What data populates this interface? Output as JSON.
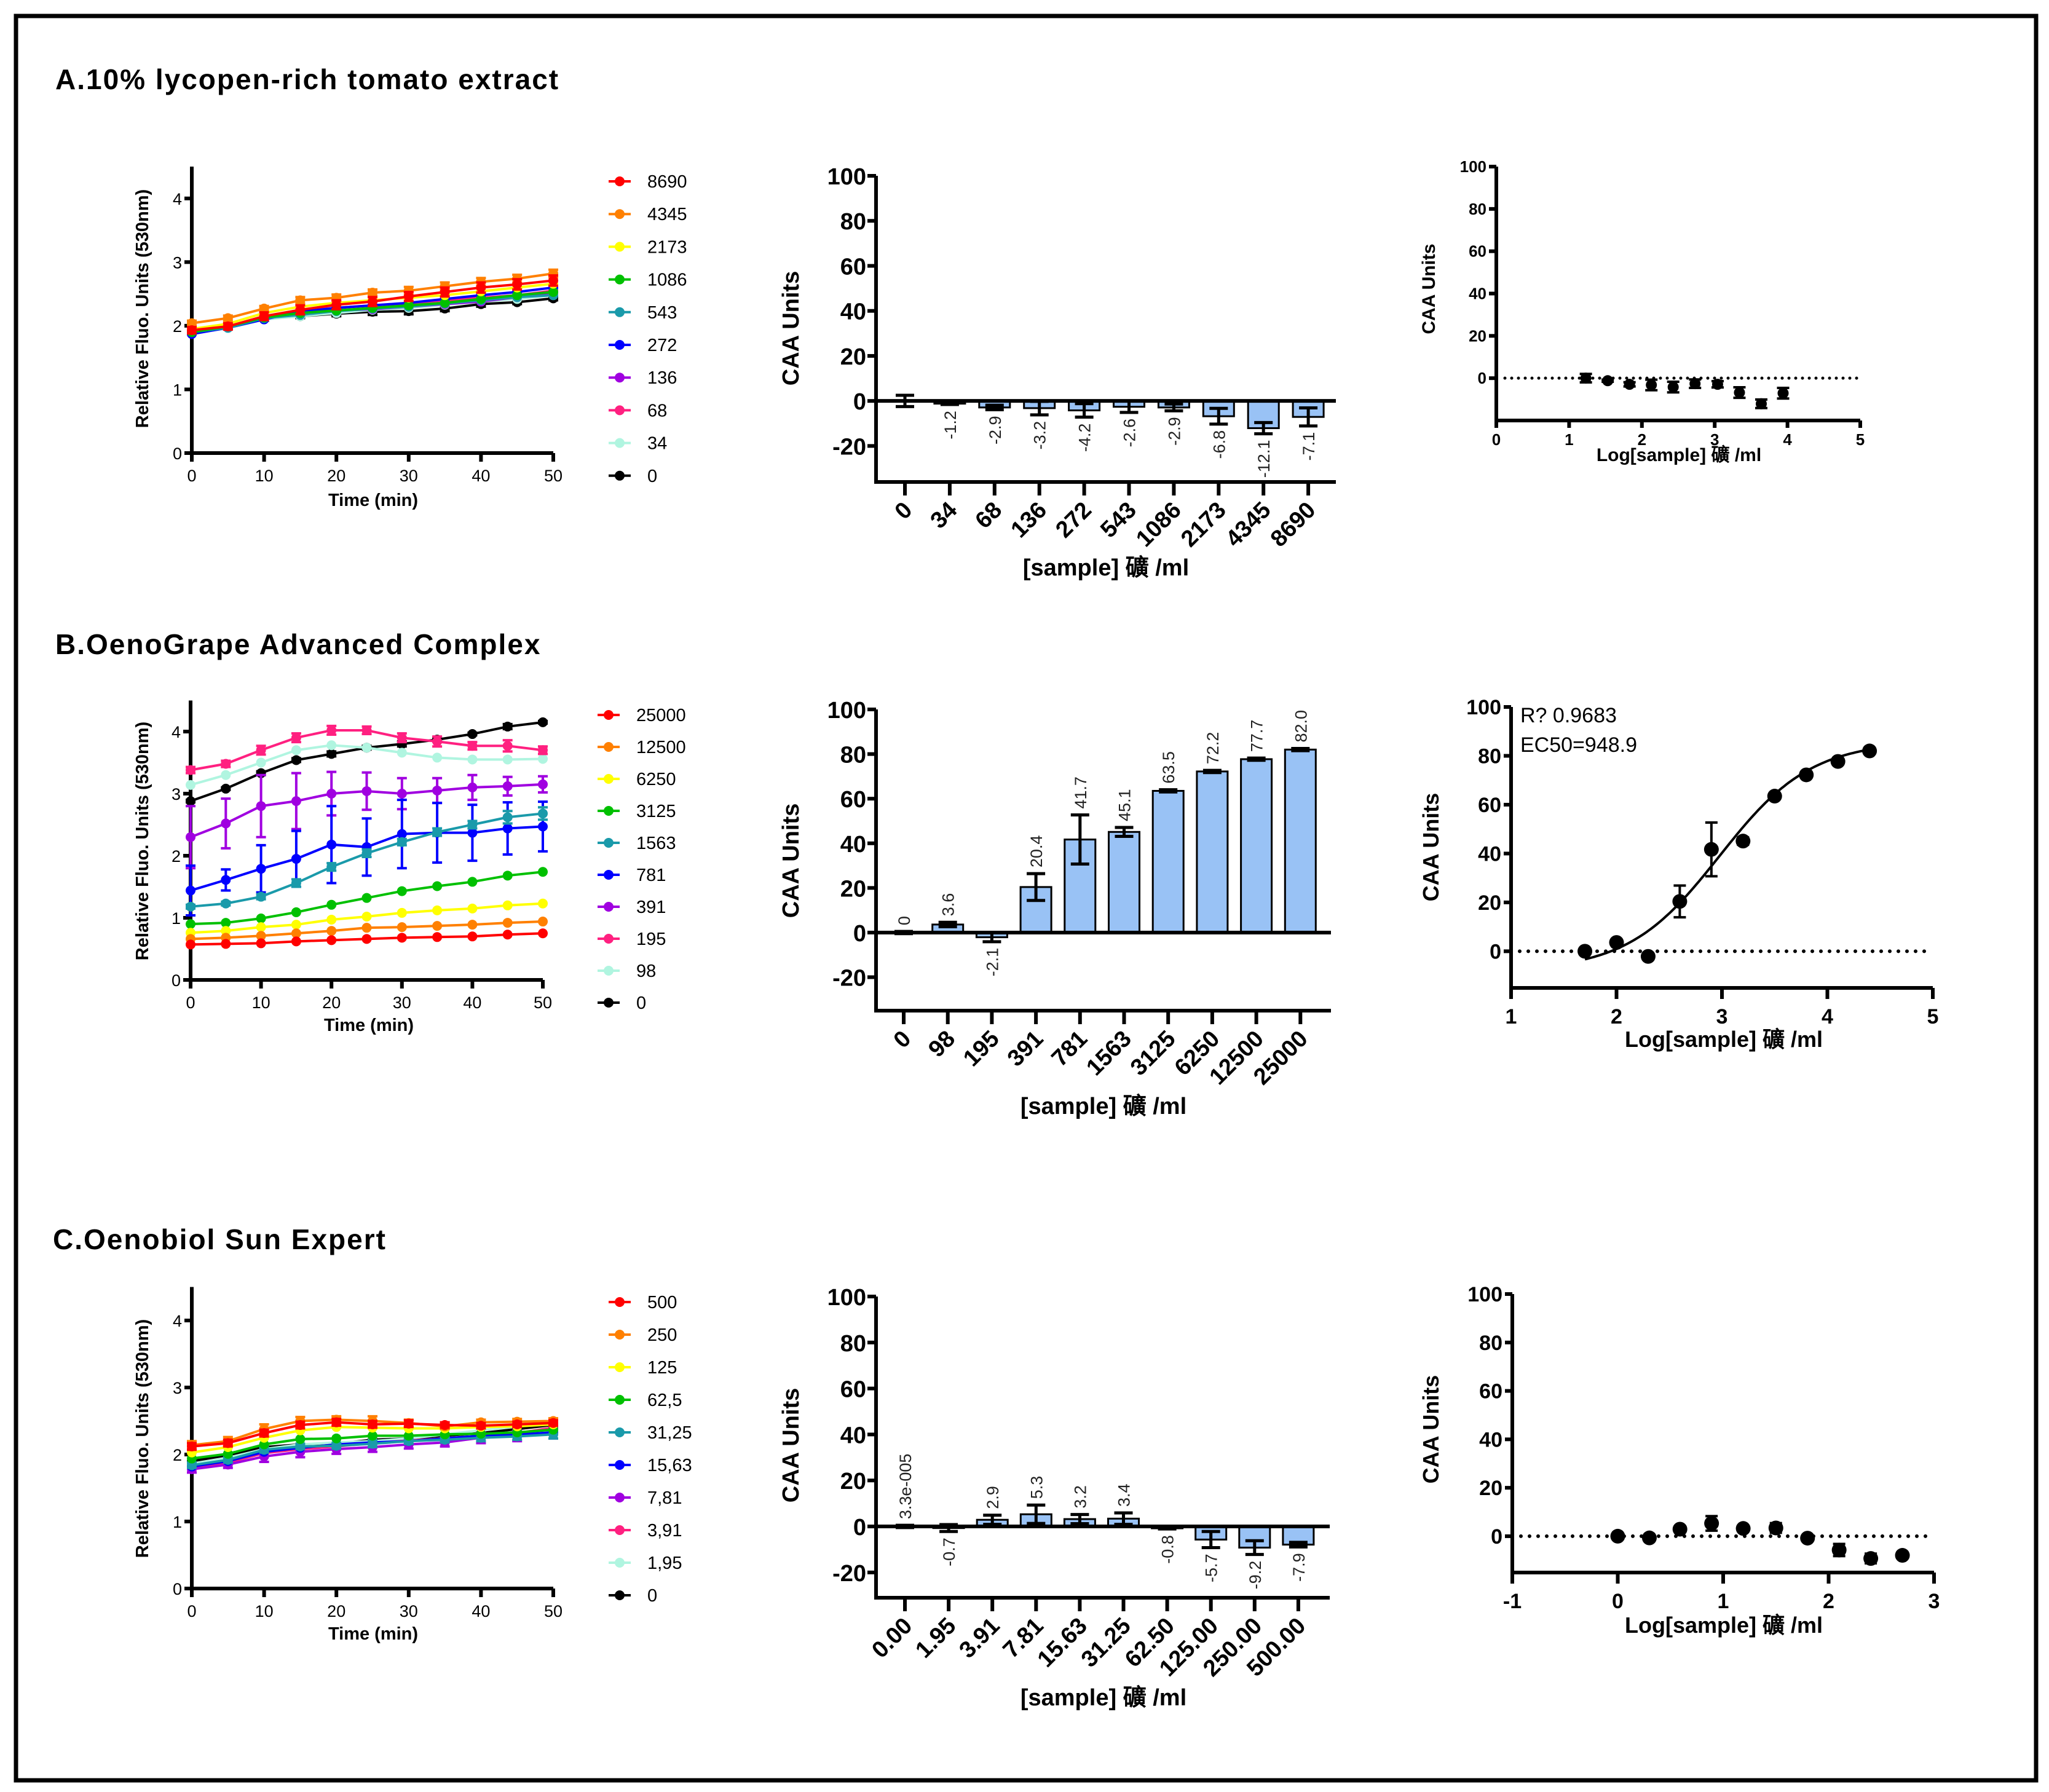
{
  "panel_titles": [
    "A.10% lycopen-rich tomato extract",
    "B.OenoGrape Advanced Complex",
    "C.Oenobiol Sun Expert"
  ],
  "chart_data": [
    {
      "type": "line",
      "panel": "A",
      "xlabel": "Time (min)",
      "ylabel": "Relative Fluo. Units (530nm)",
      "xlim": [
        0,
        50
      ],
      "ylim": [
        0,
        4.5
      ],
      "xticks": [
        0,
        10,
        20,
        30,
        40,
        50
      ],
      "yticks": [
        0,
        1,
        2,
        3,
        4
      ],
      "x": [
        0,
        5,
        10,
        15,
        20,
        25,
        30,
        35,
        40,
        45,
        50
      ],
      "series": [
        {
          "name": "8690",
          "color": "#ff0000",
          "values": [
            1.93,
            1.99,
            2.15,
            2.25,
            2.33,
            2.38,
            2.46,
            2.53,
            2.6,
            2.65,
            2.71
          ],
          "err": [
            0.05,
            0.05,
            0.06,
            0.07,
            0.07,
            0.07,
            0.07,
            0.07,
            0.08,
            0.08,
            0.08
          ]
        },
        {
          "name": "4345",
          "color": "#ff8000",
          "values": [
            2.04,
            2.12,
            2.27,
            2.4,
            2.44,
            2.52,
            2.55,
            2.62,
            2.69,
            2.74,
            2.82
          ],
          "err": [
            0.04,
            0.04,
            0.04,
            0.05,
            0.05,
            0.05,
            0.06,
            0.06,
            0.06,
            0.06,
            0.06
          ]
        },
        {
          "name": "2173",
          "color": "#ffff00",
          "values": [
            1.95,
            2.03,
            2.2,
            2.3,
            2.36,
            2.4,
            2.44,
            2.48,
            2.54,
            2.6,
            2.66
          ]
        },
        {
          "name": "1086",
          "color": "#00c000",
          "values": [
            1.9,
            1.99,
            2.13,
            2.2,
            2.24,
            2.28,
            2.32,
            2.36,
            2.42,
            2.48,
            2.53
          ]
        },
        {
          "name": "543",
          "color": "#1a9aaa",
          "values": [
            1.9,
            1.97,
            2.12,
            2.17,
            2.23,
            2.27,
            2.3,
            2.35,
            2.4,
            2.45,
            2.48
          ]
        },
        {
          "name": "272",
          "color": "#0000ff",
          "values": [
            1.87,
            1.97,
            2.1,
            2.22,
            2.28,
            2.32,
            2.36,
            2.42,
            2.48,
            2.53,
            2.6
          ]
        },
        {
          "name": "136",
          "color": "#a000e0",
          "values": [
            1.88,
            1.97,
            2.12,
            2.2,
            2.24,
            2.26,
            2.3,
            2.34,
            2.38,
            2.45,
            2.52
          ]
        },
        {
          "name": "68",
          "color": "#ff2080",
          "values": [
            1.93,
            1.98,
            2.13,
            2.24,
            2.28,
            2.32,
            2.35,
            2.4,
            2.44,
            2.48,
            2.55
          ]
        },
        {
          "name": "34",
          "color": "#b0f5e0",
          "values": [
            1.88,
            1.96,
            2.1,
            2.15,
            2.2,
            2.25,
            2.28,
            2.33,
            2.38,
            2.42,
            2.48
          ]
        },
        {
          "name": "0",
          "color": "#000000",
          "values": [
            1.9,
            1.98,
            2.11,
            2.15,
            2.19,
            2.22,
            2.23,
            2.27,
            2.34,
            2.37,
            2.43
          ],
          "err": [
            0.03,
            0.03,
            0.03,
            0.03,
            0.04,
            0.05,
            0.05,
            0.04,
            0.04,
            0.03,
            0.03
          ]
        }
      ]
    },
    {
      "type": "bar",
      "panel": "A",
      "xlabel": "[sample] 礦 /ml",
      "ylabel": "CAA Units",
      "ylim": [
        -36,
        100
      ],
      "yticks": [
        -20,
        0,
        20,
        40,
        60,
        80,
        100
      ],
      "categories": [
        "0",
        "34",
        "68",
        "136",
        "272",
        "543",
        "1086",
        "2173",
        "4345",
        "8690"
      ],
      "values": [
        0,
        -1.2,
        -2.9,
        -3.2,
        -4.2,
        -2.6,
        -2.9,
        -6.8,
        -12.1,
        -7.1
      ],
      "errors": [
        2.5,
        0.4,
        1,
        3,
        3,
        2.5,
        1.5,
        3.5,
        2.5,
        4
      ],
      "value_labels": [
        null,
        "-1.2",
        "-2.9",
        "-3.2",
        "-4.2",
        "-2.6",
        "-2.9",
        "-6.8",
        "-12.1",
        "-7.1"
      ],
      "bar_color": "#99c2f5"
    },
    {
      "type": "scatter",
      "panel": "A",
      "xlabel": "Log[sample] 礦 /ml",
      "ylabel": "CAA Units",
      "xlim": [
        0,
        5
      ],
      "ylim": [
        -20,
        100
      ],
      "xticks": [
        0,
        1,
        2,
        3,
        4,
        5
      ],
      "yticks": [
        0,
        20,
        40,
        60,
        80,
        100
      ],
      "x": [
        1.23,
        1.53,
        1.83,
        2.13,
        2.43,
        2.73,
        3.04,
        3.34,
        3.64,
        3.94
      ],
      "y": [
        0,
        -1.2,
        -2.9,
        -3.2,
        -4.2,
        -2.6,
        -2.9,
        -6.8,
        -12.1,
        -7.1
      ],
      "errors": [
        2,
        0.5,
        1,
        2.5,
        2.5,
        2,
        1.5,
        2.5,
        2,
        2.5
      ],
      "reference_line": 0
    },
    {
      "type": "line",
      "panel": "B",
      "xlabel": "Time (min)",
      "ylabel": "Relative Fluo. Units (530nm)",
      "xlim": [
        0,
        50
      ],
      "ylim": [
        0,
        4.5
      ],
      "xticks": [
        0,
        10,
        20,
        30,
        40,
        50
      ],
      "yticks": [
        0,
        1,
        2,
        3,
        4
      ],
      "x": [
        0,
        5,
        10,
        15,
        20,
        25,
        30,
        35,
        40,
        45,
        50
      ],
      "series": [
        {
          "name": "25000",
          "color": "#ff0000",
          "values": [
            0.57,
            0.58,
            0.59,
            0.62,
            0.64,
            0.66,
            0.68,
            0.69,
            0.7,
            0.73,
            0.75
          ]
        },
        {
          "name": "12500",
          "color": "#ff8000",
          "values": [
            0.66,
            0.68,
            0.71,
            0.75,
            0.79,
            0.84,
            0.85,
            0.87,
            0.89,
            0.92,
            0.94
          ]
        },
        {
          "name": "6250",
          "color": "#ffff00",
          "values": [
            0.76,
            0.79,
            0.85,
            0.89,
            0.97,
            1.02,
            1.08,
            1.12,
            1.15,
            1.2,
            1.23
          ]
        },
        {
          "name": "3125",
          "color": "#00c000",
          "values": [
            0.9,
            0.92,
            0.99,
            1.09,
            1.21,
            1.32,
            1.43,
            1.51,
            1.58,
            1.68,
            1.74
          ]
        },
        {
          "name": "1563",
          "color": "#1a9aaa",
          "values": [
            1.18,
            1.23,
            1.34,
            1.56,
            1.82,
            2.04,
            2.22,
            2.38,
            2.5,
            2.62,
            2.68
          ],
          "err": [
            0.03,
            0.03,
            0.04,
            0.06,
            0.06,
            0.06,
            0.05,
            0.06,
            0.06,
            0.1,
            0.1
          ]
        },
        {
          "name": "781",
          "color": "#0000ff",
          "values": [
            1.44,
            1.61,
            1.79,
            1.95,
            2.18,
            2.14,
            2.35,
            2.37,
            2.37,
            2.44,
            2.47
          ],
          "err": [
            0.4,
            0.17,
            0.38,
            0.45,
            0.62,
            0.46,
            0.55,
            0.48,
            0.45,
            0.42,
            0.4
          ]
        },
        {
          "name": "391",
          "color": "#a000e0",
          "values": [
            2.3,
            2.52,
            2.8,
            2.88,
            3.0,
            3.04,
            3.0,
            3.05,
            3.1,
            3.12,
            3.15
          ],
          "err": [
            0.5,
            0.4,
            0.5,
            0.45,
            0.35,
            0.3,
            0.25,
            0.2,
            0.2,
            0.15,
            0.13
          ]
        },
        {
          "name": "195",
          "color": "#ff2080",
          "values": [
            3.38,
            3.48,
            3.7,
            3.9,
            4.02,
            4.02,
            3.9,
            3.84,
            3.77,
            3.77,
            3.7
          ],
          "err": [
            0.05,
            0.05,
            0.07,
            0.07,
            0.07,
            0.06,
            0.07,
            0.08,
            0.06,
            0.09,
            0.06
          ]
        },
        {
          "name": "98",
          "color": "#b0f5e0",
          "values": [
            3.14,
            3.3,
            3.5,
            3.7,
            3.78,
            3.74,
            3.66,
            3.58,
            3.55,
            3.55,
            3.56
          ]
        },
        {
          "name": "0",
          "color": "#000000",
          "values": [
            2.88,
            3.08,
            3.33,
            3.54,
            3.64,
            3.74,
            3.8,
            3.87,
            3.96,
            4.08,
            4.15
          ],
          "err": [
            0.02,
            0.02,
            0.03,
            0.03,
            0.04,
            0.03,
            0.04,
            0.03,
            0.02,
            0.04,
            0.02
          ]
        }
      ]
    },
    {
      "type": "bar",
      "panel": "B",
      "xlabel": "[sample] 礦 /ml",
      "ylabel": "CAA Units",
      "ylim": [
        -35,
        100
      ],
      "yticks": [
        -20,
        0,
        20,
        40,
        60,
        80,
        100
      ],
      "categories": [
        "0",
        "98",
        "195",
        "391",
        "781",
        "1563",
        "3125",
        "6250",
        "12500",
        "25000"
      ],
      "values": [
        0,
        3.6,
        -2.1,
        20.4,
        41.7,
        45.1,
        63.5,
        72.2,
        77.7,
        82.0
      ],
      "errors": [
        0.5,
        1,
        2,
        6,
        11,
        2,
        0.5,
        0.5,
        0.5,
        0.5
      ],
      "value_labels": [
        "0",
        "3.6",
        "-2.1",
        "20.4",
        "41.7",
        "45.1",
        "63.5",
        "72.2",
        "77.7",
        "82.0"
      ],
      "bar_color": "#99c2f5"
    },
    {
      "type": "scatter",
      "panel": "B",
      "xlabel": "Log[sample] 礦 /ml",
      "ylabel": "CAA Units",
      "xlim": [
        1,
        5
      ],
      "ylim": [
        -15,
        100
      ],
      "xticks": [
        1,
        2,
        3,
        4,
        5
      ],
      "yticks": [
        0,
        20,
        40,
        60,
        80,
        100
      ],
      "x": [
        1.7,
        2.0,
        2.3,
        2.6,
        2.9,
        3.2,
        3.5,
        3.8,
        4.1,
        4.4
      ],
      "y": [
        0,
        3.6,
        -2.1,
        20.4,
        41.7,
        45.1,
        63.5,
        72.2,
        77.7,
        82.0
      ],
      "errors": [
        0,
        0.5,
        0,
        6.5,
        11,
        1.5,
        0.5,
        0,
        0,
        0
      ],
      "reference_line": 0,
      "fit": {
        "model": "sigmoidal dose-response",
        "bottom": -8,
        "top": 86,
        "logEC50": 2.977,
        "hill": 1.0,
        "range": [
          1.7,
          4.4
        ]
      },
      "annotations": [
        "R? 0.9683",
        "EC50=948.9"
      ]
    },
    {
      "type": "line",
      "panel": "C",
      "xlabel": "Time (min)",
      "ylabel": "Relative Fluo. Units (530nm)",
      "xlim": [
        0,
        50
      ],
      "ylim": [
        0,
        4.5
      ],
      "xticks": [
        0,
        10,
        20,
        30,
        40,
        50
      ],
      "yticks": [
        0,
        1,
        2,
        3,
        4
      ],
      "x": [
        0,
        5,
        10,
        15,
        20,
        25,
        30,
        35,
        40,
        45,
        50
      ],
      "series": [
        {
          "name": "500",
          "color": "#ff0000",
          "values": [
            2.12,
            2.17,
            2.32,
            2.44,
            2.48,
            2.45,
            2.46,
            2.44,
            2.43,
            2.45,
            2.47
          ],
          "err": [
            0.05,
            0.05,
            0.05,
            0.05,
            0.05,
            0.05,
            0.05,
            0.04,
            0.04,
            0.04,
            0.04
          ]
        },
        {
          "name": "250",
          "color": "#ff8000",
          "values": [
            2.14,
            2.2,
            2.38,
            2.5,
            2.52,
            2.5,
            2.47,
            2.42,
            2.48,
            2.49,
            2.5
          ],
          "err": [
            0.06,
            0.06,
            0.07,
            0.06,
            0.05,
            0.07,
            0.05,
            0.04,
            0.04,
            0.04,
            0.04
          ]
        },
        {
          "name": "125",
          "color": "#ffff00",
          "values": [
            2.03,
            2.11,
            2.25,
            2.36,
            2.41,
            2.4,
            2.39,
            2.39,
            2.41,
            2.42,
            2.45
          ]
        },
        {
          "name": "62,5",
          "color": "#00c000",
          "values": [
            1.94,
            2.01,
            2.15,
            2.23,
            2.24,
            2.28,
            2.28,
            2.3,
            2.31,
            2.33,
            2.37
          ]
        },
        {
          "name": "31,25",
          "color": "#1a9aaa",
          "values": [
            1.84,
            1.92,
            2.07,
            2.12,
            2.13,
            2.16,
            2.2,
            2.22,
            2.25,
            2.27,
            2.3
          ],
          "err": [
            0.04,
            0.04,
            0.04,
            0.04,
            0.04,
            0.05,
            0.04,
            0.04,
            0.05,
            0.05,
            0.06
          ]
        },
        {
          "name": "15,63",
          "color": "#0000ff",
          "values": [
            1.82,
            1.9,
            2.04,
            2.1,
            2.15,
            2.18,
            2.2,
            2.24,
            2.28,
            2.3,
            2.33
          ]
        },
        {
          "name": "7,81",
          "color": "#a000e0",
          "values": [
            1.78,
            1.85,
            1.97,
            2.04,
            2.08,
            2.11,
            2.15,
            2.18,
            2.25,
            2.28,
            2.32
          ],
          "err": [
            0.05,
            0.05,
            0.08,
            0.08,
            0.07,
            0.07,
            0.06,
            0.06,
            0.08,
            0.08,
            0.08
          ]
        },
        {
          "name": "3,91",
          "color": "#ff2080",
          "values": [
            1.8,
            1.88,
            2.02,
            2.08,
            2.12,
            2.17,
            2.21,
            2.24,
            2.28,
            2.32,
            2.4
          ]
        },
        {
          "name": "1,95",
          "color": "#b0f5e0",
          "values": [
            1.86,
            1.95,
            2.08,
            2.15,
            2.18,
            2.2,
            2.24,
            2.3,
            2.36,
            2.42,
            2.48
          ]
        },
        {
          "name": "0",
          "color": "#000000",
          "values": [
            1.9,
            1.99,
            2.11,
            2.15,
            2.16,
            2.22,
            2.24,
            2.28,
            2.32,
            2.38,
            2.44
          ]
        }
      ]
    },
    {
      "type": "bar",
      "panel": "C",
      "xlabel": "[sample] 礦 /ml",
      "ylabel": "CAA Units",
      "ylim": [
        -31,
        100
      ],
      "yticks": [
        -20,
        0,
        20,
        40,
        60,
        80,
        100
      ],
      "categories": [
        "0.00",
        "1.95",
        "3.91",
        "7.81",
        "15.63",
        "31.25",
        "62.50",
        "125.00",
        "250.00",
        "500.00"
      ],
      "values": [
        3.3e-05,
        -0.7,
        2.9,
        5.3,
        3.2,
        3.4,
        -0.8,
        -5.7,
        -9.2,
        -7.9
      ],
      "errors": [
        0.5,
        1.5,
        2,
        4,
        2,
        2.5,
        0.3,
        3.5,
        3,
        1
      ],
      "value_labels": [
        "3.3e-005",
        "-0.7",
        "2.9",
        "5.3",
        "3.2",
        "3.4",
        "-0.8",
        "-5.7",
        "-9.2",
        "-7.9"
      ],
      "bar_color": "#99c2f5"
    },
    {
      "type": "scatter",
      "panel": "C",
      "xlabel": "Log[sample] 礦 /ml",
      "ylabel": "CAA Units",
      "xlim": [
        -1,
        3
      ],
      "ylim": [
        -15,
        100
      ],
      "xticks": [
        -1,
        0,
        1,
        2,
        3
      ],
      "yticks": [
        0,
        20,
        40,
        60,
        80,
        100
      ],
      "x": [
        0,
        0.3,
        0.59,
        0.89,
        1.19,
        1.5,
        1.8,
        2.1,
        2.4,
        2.7
      ],
      "y": [
        0,
        -0.7,
        2.9,
        5.3,
        3.2,
        3.4,
        -0.8,
        -5.7,
        -9.2,
        -7.9
      ],
      "errors": [
        1,
        1,
        1,
        3,
        1,
        2,
        0.5,
        2.5,
        2,
        1
      ],
      "reference_line": 0
    }
  ]
}
